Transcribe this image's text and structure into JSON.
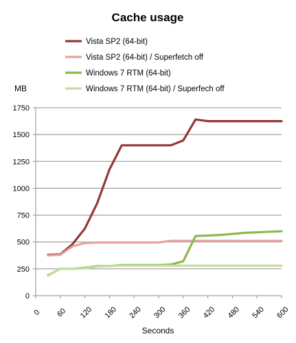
{
  "chart_data": {
    "type": "line",
    "title": "Cache usage",
    "xlabel": "Seconds",
    "ylabel": "MB",
    "xlim": [
      0,
      600
    ],
    "ylim": [
      0,
      1750
    ],
    "x_ticks": [
      0,
      60,
      120,
      180,
      240,
      300,
      360,
      420,
      480,
      540,
      600
    ],
    "y_ticks": [
      0,
      250,
      500,
      750,
      1000,
      1250,
      1500,
      1750
    ],
    "grid": "horizontal",
    "legend": "top",
    "series": [
      {
        "name": "Vista SP2 (64-bit)",
        "color": "#953735",
        "x": [
          30,
          60,
          90,
          120,
          150,
          180,
          210,
          240,
          270,
          300,
          330,
          360,
          390,
          420,
          450,
          480,
          510,
          540,
          570,
          600
        ],
        "y": [
          380,
          385,
          480,
          625,
          860,
          1175,
          1400,
          1400,
          1400,
          1400,
          1400,
          1445,
          1640,
          1625,
          1625,
          1625,
          1625,
          1625,
          1625,
          1625
        ]
      },
      {
        "name": "Vista SP2 (64-bit)  / Superfetch off",
        "color": "#E6A0A0",
        "x": [
          30,
          60,
          90,
          120,
          150,
          180,
          210,
          240,
          270,
          300,
          330,
          360,
          390,
          420,
          450,
          480,
          510,
          540,
          570,
          600
        ],
        "y": [
          375,
          380,
          460,
          490,
          495,
          495,
          495,
          495,
          495,
          495,
          510,
          510,
          510,
          510,
          510,
          510,
          510,
          510,
          510,
          510
        ]
      },
      {
        "name": "Windows 7 RTM  (64-bit)",
        "color": "#8CB84A",
        "x": [
          30,
          60,
          90,
          120,
          150,
          180,
          210,
          240,
          270,
          300,
          330,
          360,
          390,
          420,
          450,
          480,
          510,
          540,
          570,
          600
        ],
        "y": [
          190,
          250,
          250,
          260,
          275,
          275,
          285,
          285,
          285,
          285,
          290,
          320,
          555,
          560,
          565,
          575,
          585,
          590,
          595,
          600
        ]
      },
      {
        "name": "Windows 7 RTM  (64-bit) / Superfech off",
        "color": "#C4DE9C",
        "x": [
          30,
          60,
          90,
          120,
          150,
          180,
          210,
          240,
          270,
          300,
          330,
          360,
          390,
          420,
          450,
          480,
          510,
          540,
          570,
          600
        ],
        "y": [
          185,
          250,
          250,
          255,
          270,
          275,
          280,
          280,
          280,
          280,
          280,
          280,
          280,
          280,
          280,
          280,
          280,
          280,
          280,
          280
        ]
      }
    ]
  }
}
